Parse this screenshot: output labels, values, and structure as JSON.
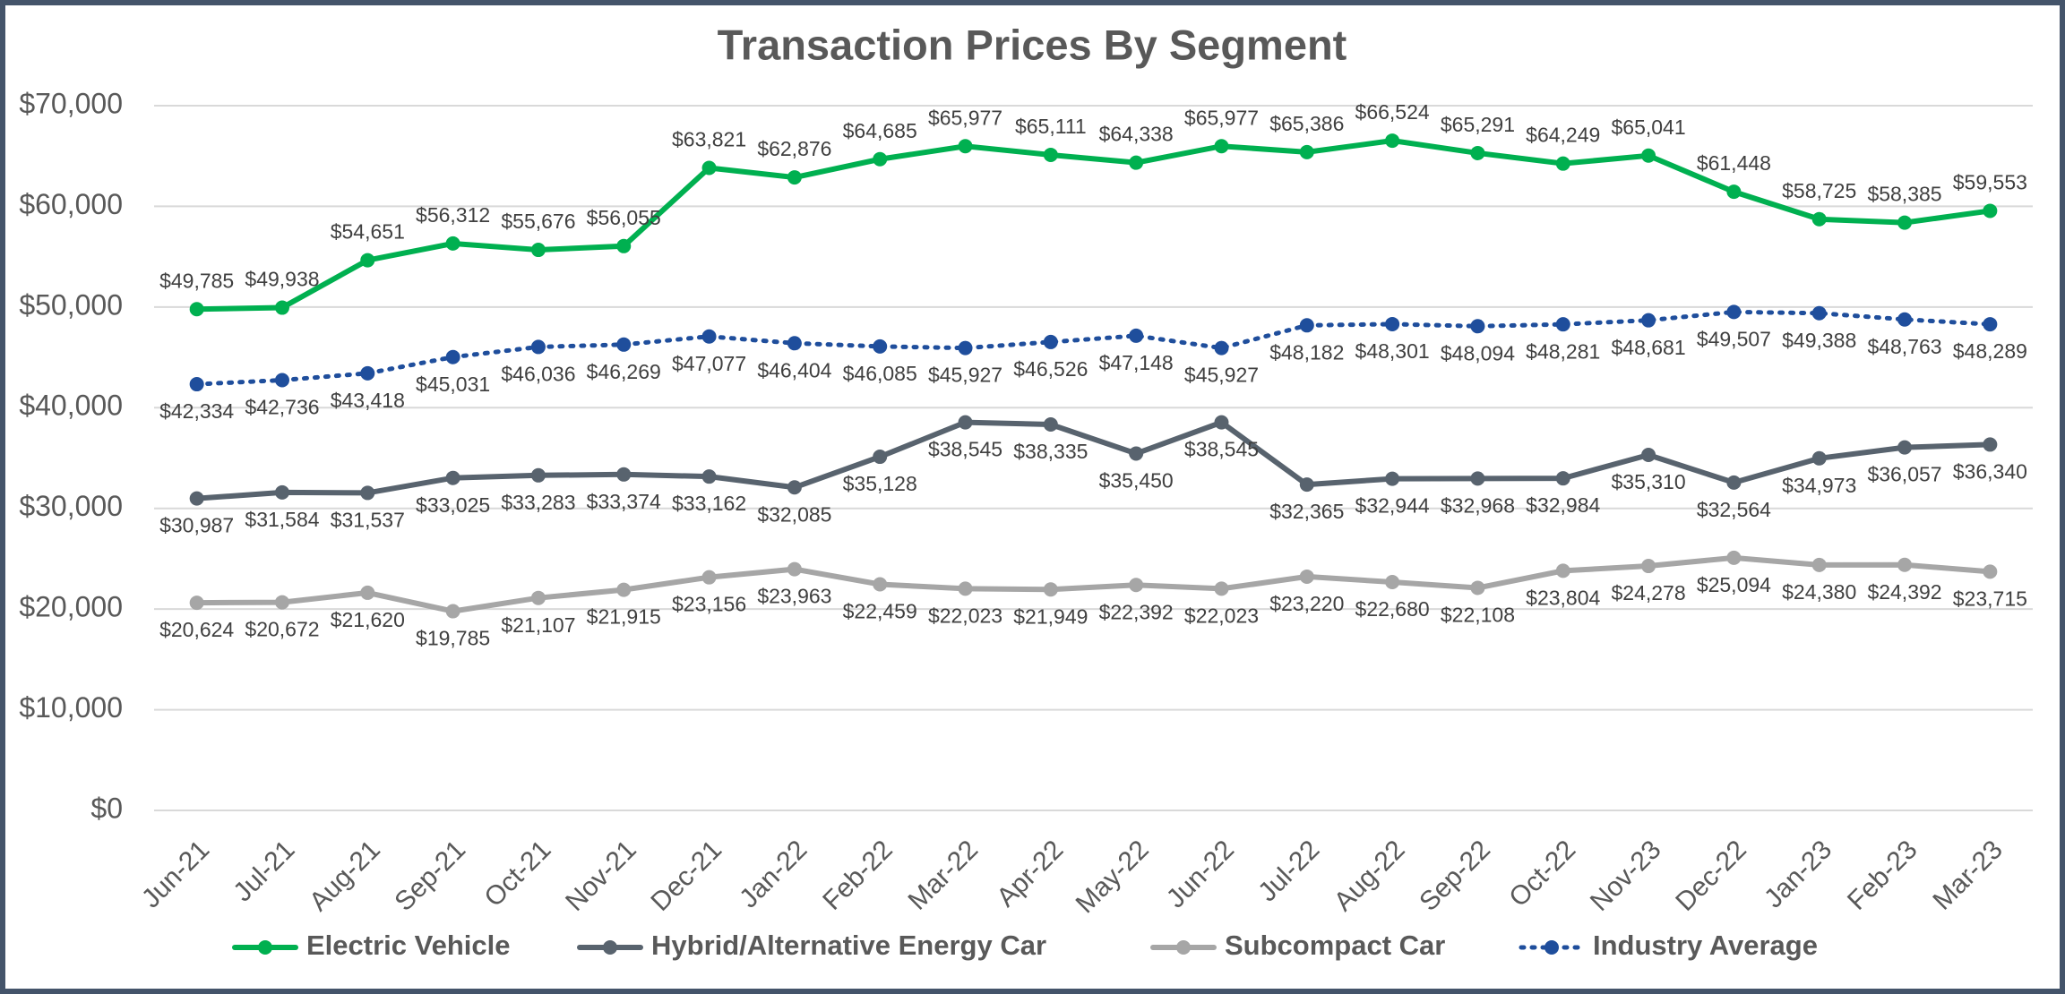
{
  "chart_data": {
    "type": "line",
    "title": "Transaction Prices By Segment",
    "categories": [
      "Jun-21",
      "Jul-21",
      "Aug-21",
      "Sep-21",
      "Oct-21",
      "Nov-21",
      "Dec-21",
      "Jan-22",
      "Feb-22",
      "Mar-22",
      "Apr-22",
      "May-22",
      "Jun-22",
      "Jul-22",
      "Aug-22",
      "Sep-22",
      "Oct-22",
      "Nov-23",
      "Dec-22",
      "Jan-23",
      "Feb-23",
      "Mar-23"
    ],
    "ylim": [
      0,
      70000
    ],
    "yticks": [
      {
        "value": 0,
        "label": "$0"
      },
      {
        "value": 10000,
        "label": "$10,000"
      },
      {
        "value": 20000,
        "label": "$20,000"
      },
      {
        "value": 30000,
        "label": "$30,000"
      },
      {
        "value": 40000,
        "label": "$40,000"
      },
      {
        "value": 50000,
        "label": "$50,000"
      },
      {
        "value": 60000,
        "label": "$60,000"
      },
      {
        "value": 70000,
        "label": "$70,000"
      }
    ],
    "grid": true,
    "legend": "bottom",
    "series": [
      {
        "name": "Electric Vehicle",
        "color": "#00b050",
        "line_style": "solid",
        "values": [
          49785,
          49938,
          54651,
          56312,
          55676,
          56055,
          63821,
          62876,
          64685,
          65977,
          65111,
          64338,
          65977,
          65386,
          66524,
          65291,
          64249,
          65041,
          61448,
          58725,
          58385,
          59553
        ],
        "value_labels": [
          "$49,785",
          "$49,938",
          "$54,651",
          "$56,312",
          "$55,676",
          "$56,055",
          "$63,821",
          "$62,876",
          "$64,685",
          "$65,977",
          "$65,111",
          "$64,338",
          "$65,977",
          "$65,386",
          "$66,524",
          "$65,291",
          "$64,249",
          "$65,041",
          "$61,448",
          "$58,725",
          "$58,385",
          "$59,553"
        ]
      },
      {
        "name": "Hybrid/Alternative Energy Car",
        "color": "#58636e",
        "line_style": "solid",
        "values": [
          30987,
          31584,
          31537,
          33025,
          33283,
          33374,
          33162,
          32085,
          35128,
          38545,
          38335,
          35450,
          38545,
          32365,
          32944,
          32968,
          32984,
          35310,
          32564,
          34973,
          36057,
          36340
        ],
        "value_labels": [
          "$30,987",
          "$31,584",
          "$31,537",
          "$33,025",
          "$33,283",
          "$33,374",
          "$33,162",
          "$32,085",
          "$35,128",
          "$38,545",
          "$38,335",
          "$35,450",
          "$38,545",
          "$32,365",
          "$32,944",
          "$32,968",
          "$32,984",
          "$35,310",
          "$32,564",
          "$34,973",
          "$36,057",
          "$36,340"
        ]
      },
      {
        "name": "Subcompact Car",
        "color": "#a6a6a6",
        "line_style": "solid",
        "values": [
          20624,
          20672,
          21620,
          19785,
          21107,
          21915,
          23156,
          23963,
          22459,
          22023,
          21949,
          22392,
          22023,
          23220,
          22680,
          22108,
          23804,
          24278,
          25094,
          24380,
          24392,
          23715
        ],
        "value_labels": [
          "$20,624",
          "$20,672",
          "$21,620",
          "$19,785",
          "$21,107",
          "$21,915",
          "$23,156",
          "$23,963",
          "$22,459",
          "$22,023",
          "$21,949",
          "$22,392",
          "$22,023",
          "$23,220",
          "$22,680",
          "$22,108",
          "$23,804",
          "$24,278",
          "$25,094",
          "$24,380",
          "$24,392",
          "$23,715"
        ]
      },
      {
        "name": "Industry Average",
        "color": "#1f4e9c",
        "line_style": "dotted",
        "values": [
          42334,
          42736,
          43418,
          45031,
          46036,
          46269,
          47077,
          46404,
          46085,
          45927,
          46526,
          47148,
          45927,
          48182,
          48301,
          48094,
          48281,
          48681,
          49507,
          49388,
          48763,
          48289
        ],
        "value_labels": [
          "$42,334",
          "$42,736",
          "$43,418",
          "$45,031",
          "$46,036",
          "$46,269",
          "$47,077",
          "$46,404",
          "$46,085",
          "$45,927",
          "$46,526",
          "$47,148",
          "$45,927",
          "$48,182",
          "$48,301",
          "$48,094",
          "$48,281",
          "$48,681",
          "$49,507",
          "$49,388",
          "$48,763",
          "$48,289"
        ]
      }
    ]
  }
}
